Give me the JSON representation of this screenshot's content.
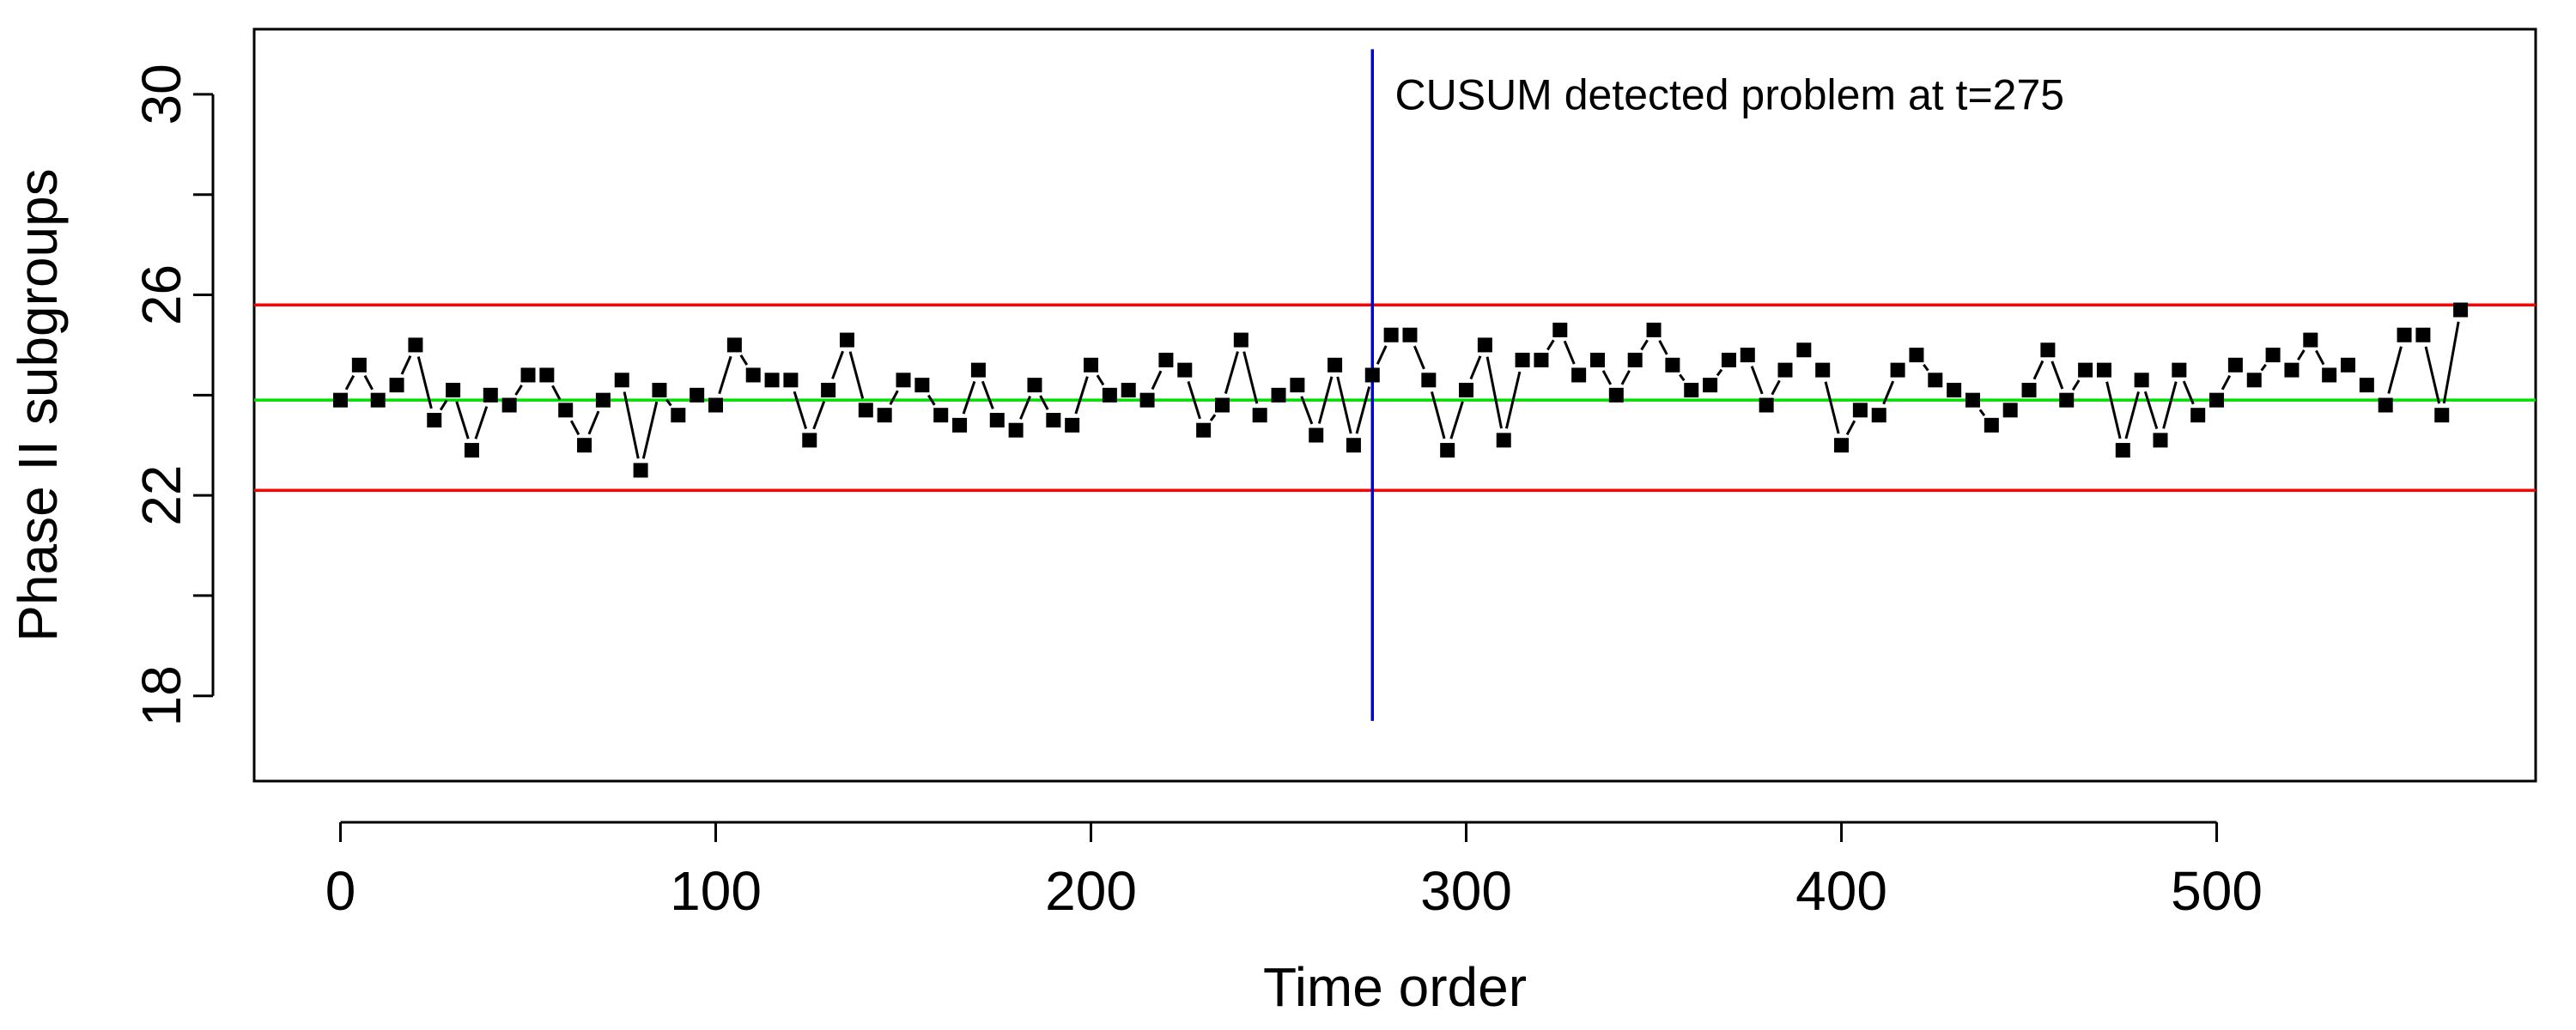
{
  "chart_data": {
    "type": "line",
    "xlabel": "Time order",
    "ylabel": "Phase II subgroups",
    "xlim": [
      -23,
      585
    ],
    "ylim": [
      16.3,
      31.3
    ],
    "x_ticks": [
      0,
      100,
      200,
      300,
      400,
      500
    ],
    "y_ticks": [
      18,
      22,
      26,
      30
    ],
    "y_minor_ticks": [
      20,
      24,
      28
    ],
    "grid": false,
    "line_style": "dashed segments with square markers",
    "reference_lines": [
      {
        "name": "upper limit",
        "type": "h",
        "value": 25.8,
        "color": "#ff0000"
      },
      {
        "name": "center line",
        "type": "h",
        "value": 23.9,
        "color": "#00e000"
      },
      {
        "name": "lower limit",
        "type": "h",
        "value": 22.1,
        "color": "#ff0000"
      },
      {
        "name": "change point",
        "type": "v",
        "value": 275,
        "y_range": [
          17.5,
          30.9
        ],
        "color": "#0000cc"
      }
    ],
    "annotations": [
      {
        "text": "CUSUM detected problem at t=275",
        "x": 281,
        "y": 29.7
      }
    ],
    "series": [
      {
        "marker_color": "#000000",
        "x": [
          0,
          5,
          10,
          15,
          20,
          25,
          30,
          35,
          40,
          45,
          50,
          55,
          60,
          65,
          70,
          75,
          80,
          85,
          90,
          95,
          100,
          105,
          110,
          115,
          120,
          125,
          130,
          135,
          140,
          145,
          150,
          155,
          160,
          165,
          170,
          175,
          180,
          185,
          190,
          195,
          200,
          205,
          210,
          215,
          220,
          225,
          230,
          235,
          240,
          245,
          250,
          255,
          260,
          265,
          270,
          275,
          280,
          285,
          290,
          295,
          300,
          305,
          310,
          315,
          320,
          325,
          330,
          335,
          340,
          345,
          350,
          355,
          360,
          365,
          370,
          375,
          380,
          385,
          390,
          395,
          400,
          405,
          410,
          415,
          420,
          425,
          430,
          435,
          440,
          445,
          450,
          455,
          460,
          465,
          470,
          475,
          480,
          485,
          490,
          495,
          500,
          505,
          510,
          515,
          520,
          525,
          530,
          535,
          540,
          545,
          550,
          555,
          560,
          565
        ],
        "y": [
          23.9,
          24.6,
          23.9,
          24.2,
          25.0,
          23.5,
          24.1,
          22.9,
          24.0,
          23.8,
          24.4,
          24.4,
          23.7,
          23.0,
          23.9,
          24.3,
          22.5,
          24.1,
          23.6,
          24.0,
          23.8,
          25.0,
          24.4,
          24.3,
          24.3,
          23.1,
          24.1,
          25.1,
          23.7,
          23.6,
          24.3,
          24.2,
          23.6,
          23.4,
          24.5,
          23.5,
          23.3,
          24.2,
          23.5,
          23.4,
          24.6,
          24.0,
          24.1,
          23.9,
          24.7,
          24.5,
          23.3,
          23.8,
          25.1,
          23.6,
          24.0,
          24.2,
          23.2,
          24.6,
          23.0,
          24.4,
          25.2,
          25.2,
          24.3,
          22.9,
          24.1,
          25.0,
          23.1,
          24.7,
          24.7,
          25.3,
          24.4,
          24.7,
          24.0,
          24.7,
          25.3,
          24.6,
          24.1,
          24.2,
          24.7,
          24.8,
          23.8,
          24.5,
          24.9,
          24.5,
          23.0,
          23.7,
          23.6,
          24.5,
          24.8,
          24.3,
          24.1,
          23.9,
          23.4,
          23.7,
          24.1,
          24.9,
          23.9,
          24.5,
          24.5,
          22.9,
          24.3,
          23.1,
          24.5,
          23.6,
          23.9,
          24.6,
          24.3,
          24.8,
          24.5,
          25.1,
          24.4,
          24.6,
          24.2,
          23.8,
          25.2,
          25.2,
          23.6,
          25.7
        ]
      }
    ]
  }
}
